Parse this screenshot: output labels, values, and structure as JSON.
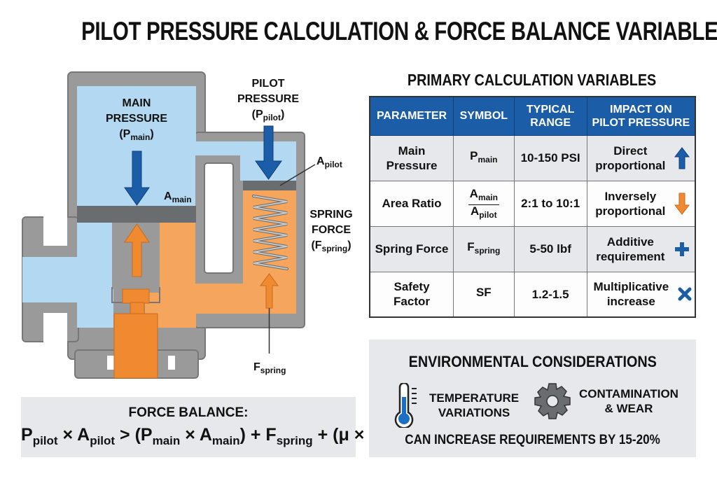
{
  "title": "PILOT PRESSURE CALCULATION & FORCE BALANCE VARIABLES",
  "colors": {
    "fluid_blue": "#b3d9f2",
    "fluid_orange": "#f5a55c",
    "orange_arrow": "#f08a30",
    "blue_arrow": "#1c5da8",
    "housing_gray": "#9a9a9a",
    "header_blue": "#1c5da8",
    "panel_gray": "#e6e8ec"
  },
  "diagram": {
    "main_pressure": {
      "line1": "MAIN",
      "line2": "PRESSURE",
      "symbol": "P",
      "sub": "main"
    },
    "pilot_pressure": {
      "line1": "PILOT",
      "line2": "PRESSURE",
      "symbol": "P",
      "sub": "pilot"
    },
    "a_main": {
      "symbol": "A",
      "sub": "main"
    },
    "a_pilot": {
      "symbol": "A",
      "sub": "pilot"
    },
    "spring_force": {
      "line1": "SPRING",
      "line2": "FORCE",
      "symbol": "F",
      "sub": "spring"
    },
    "f_spring": {
      "symbol": "F",
      "sub": "spring"
    }
  },
  "table": {
    "title": "PRIMARY CALCULATION VARIABLES",
    "headers": [
      {
        "line1": "PARAMETER",
        "line2": ""
      },
      {
        "line1": "SYMBOL",
        "line2": ""
      },
      {
        "line1": "TYPICAL",
        "line2": "RANGE"
      },
      {
        "line1": "IMPACT ON",
        "line2": "PILOT PRESSURE"
      }
    ],
    "rows": [
      {
        "parameter": "Main Pressure",
        "symbol": "P",
        "symbol_sub": "main",
        "range": "10-150 PSI",
        "impact": "Direct proportional",
        "icon": "arrow-up-icon"
      },
      {
        "parameter": "Area Ratio",
        "symbol_num": "A",
        "symbol_num_sub": "main",
        "symbol_den": "A",
        "symbol_den_sub": "pilot",
        "range": "2:1 to 10:1",
        "impact": "Inversely proportional",
        "icon": "arrow-down-icon"
      },
      {
        "parameter": "Spring Force",
        "symbol": "F",
        "symbol_sub": "spring",
        "range": "5-50 lbf",
        "impact": "Additive requirement",
        "icon": "plus-icon"
      },
      {
        "parameter": "Safety Factor",
        "symbol": "SF",
        "symbol_sub": "",
        "range": "1.2-1.5",
        "impact": "Multiplicative increase",
        "icon": "multiply-icon"
      }
    ]
  },
  "force_balance": {
    "title": "FORCE BALANCE:",
    "formula": [
      {
        "t": "P",
        "s": "pilot"
      },
      {
        "t": " × A",
        "s": "pilot"
      },
      {
        "t": " > (P",
        "s": "main"
      },
      {
        "t": " × A",
        "s": "main"
      },
      {
        "t": ") + F",
        "s": "spring"
      },
      {
        "t": " + (μ × N)",
        "s": ""
      }
    ]
  },
  "environment": {
    "title": "ENVIRONMENTAL CONSIDERATIONS",
    "items": [
      {
        "line1": "TEMPERATURE",
        "line2": "VARIATIONS",
        "icon": "thermometer-icon"
      },
      {
        "line1": "CONTAMINATION",
        "line2": "& WEAR",
        "icon": "gear-icon"
      }
    ],
    "footer": "CAN INCREASE REQUIREMENTS BY 15-20%"
  }
}
